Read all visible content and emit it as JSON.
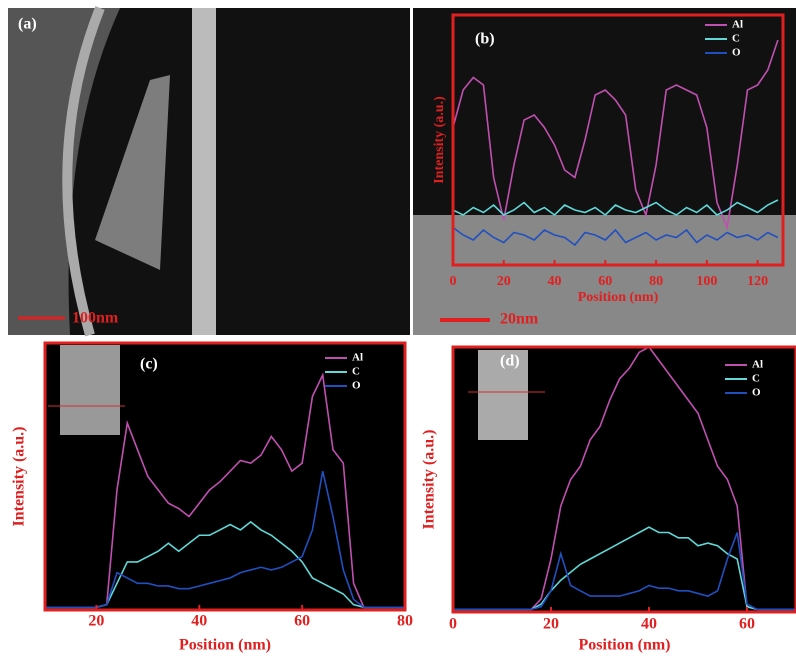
{
  "panel_a": {
    "label": "(a)",
    "scale_bar": "100nm"
  },
  "chart_data": [
    {
      "type": "line",
      "panel_label": "(b)",
      "scale_bar": "20nm",
      "xlabel": "Position (nm)",
      "ylabel": "Intensity (a.u.)",
      "xlim": [
        0,
        130
      ],
      "xticks": [
        0,
        20,
        40,
        60,
        80,
        100,
        120
      ],
      "ylim": [
        0,
        100
      ],
      "x": [
        0,
        4,
        8,
        12,
        16,
        20,
        24,
        28,
        32,
        36,
        40,
        44,
        48,
        52,
        56,
        60,
        64,
        68,
        72,
        76,
        80,
        84,
        88,
        92,
        96,
        100,
        104,
        108,
        112,
        116,
        120,
        124,
        128
      ],
      "series": [
        {
          "name": "Al",
          "color": "#c050b0",
          "values": [
            55,
            70,
            75,
            72,
            35,
            18,
            40,
            58,
            60,
            55,
            48,
            38,
            35,
            50,
            68,
            70,
            66,
            60,
            30,
            20,
            40,
            70,
            72,
            70,
            68,
            55,
            25,
            15,
            40,
            70,
            72,
            78,
            90
          ]
        },
        {
          "name": "C",
          "color": "#60d8d8",
          "values": [
            22,
            20,
            23,
            21,
            24,
            20,
            22,
            25,
            21,
            23,
            20,
            24,
            22,
            21,
            23,
            20,
            24,
            22,
            21,
            23,
            25,
            22,
            20,
            23,
            21,
            24,
            20,
            22,
            25,
            23,
            21,
            24,
            26
          ]
        },
        {
          "name": "O",
          "color": "#2050c0",
          "values": [
            15,
            12,
            10,
            14,
            11,
            9,
            13,
            12,
            10,
            14,
            12,
            11,
            8,
            13,
            12,
            10,
            14,
            9,
            11,
            13,
            10,
            12,
            11,
            14,
            9,
            12,
            10,
            13,
            11,
            12,
            10,
            13,
            11
          ]
        }
      ]
    },
    {
      "type": "line",
      "panel_label": "(c)",
      "xlabel": "Position (nm)",
      "ylabel": "Intensity (a.u.)",
      "xlim": [
        10,
        80
      ],
      "xticks": [
        20,
        40,
        60,
        80
      ],
      "ylim": [
        0,
        100
      ],
      "x": [
        10,
        12,
        14,
        16,
        18,
        20,
        22,
        24,
        26,
        28,
        30,
        32,
        34,
        36,
        38,
        40,
        42,
        44,
        46,
        48,
        50,
        52,
        54,
        56,
        58,
        60,
        62,
        64,
        66,
        68,
        70,
        72,
        74,
        76,
        78,
        80
      ],
      "series": [
        {
          "name": "Al",
          "color": "#c050b0",
          "values": [
            1,
            1,
            1,
            1,
            1,
            1,
            2,
            45,
            70,
            60,
            50,
            45,
            40,
            38,
            35,
            40,
            45,
            48,
            52,
            56,
            55,
            58,
            65,
            60,
            52,
            55,
            80,
            88,
            60,
            55,
            10,
            1,
            1,
            1,
            1,
            1
          ]
        },
        {
          "name": "C",
          "color": "#60d8d8",
          "values": [
            1,
            1,
            1,
            1,
            1,
            1,
            2,
            10,
            18,
            18,
            20,
            22,
            25,
            22,
            25,
            28,
            28,
            30,
            32,
            30,
            33,
            30,
            28,
            25,
            22,
            18,
            12,
            10,
            8,
            6,
            2,
            1,
            1,
            1,
            1,
            1
          ]
        },
        {
          "name": "O",
          "color": "#2050c0",
          "values": [
            1,
            1,
            1,
            1,
            1,
            1,
            2,
            14,
            12,
            10,
            10,
            9,
            9,
            8,
            8,
            9,
            10,
            11,
            12,
            14,
            15,
            16,
            15,
            16,
            18,
            20,
            30,
            52,
            35,
            15,
            4,
            1,
            1,
            1,
            1,
            1
          ]
        }
      ]
    },
    {
      "type": "line",
      "panel_label": "(d)",
      "xlabel": "Position (nm)",
      "ylabel": "Intensity (a.u.)",
      "xlim": [
        0,
        70
      ],
      "xticks": [
        0,
        20,
        40,
        60
      ],
      "ylim": [
        0,
        100
      ],
      "x": [
        0,
        2,
        4,
        6,
        8,
        10,
        12,
        14,
        16,
        18,
        20,
        22,
        24,
        26,
        28,
        30,
        32,
        34,
        36,
        38,
        40,
        42,
        44,
        46,
        48,
        50,
        52,
        54,
        56,
        58,
        60,
        62,
        64,
        66,
        68,
        70
      ],
      "series": [
        {
          "name": "Al",
          "color": "#c050b0",
          "values": [
            1,
            1,
            1,
            1,
            1,
            1,
            1,
            1,
            1,
            5,
            20,
            40,
            50,
            55,
            65,
            70,
            80,
            88,
            92,
            98,
            100,
            95,
            90,
            85,
            80,
            75,
            65,
            55,
            50,
            40,
            2,
            1,
            1,
            1,
            1,
            1
          ]
        },
        {
          "name": "C",
          "color": "#60d8d8",
          "values": [
            1,
            1,
            1,
            1,
            1,
            1,
            1,
            1,
            1,
            3,
            8,
            12,
            15,
            18,
            20,
            22,
            24,
            26,
            28,
            30,
            32,
            30,
            30,
            28,
            28,
            25,
            26,
            25,
            22,
            20,
            2,
            1,
            1,
            1,
            1,
            1
          ]
        },
        {
          "name": "O",
          "color": "#2050c0",
          "values": [
            1,
            1,
            1,
            1,
            1,
            1,
            1,
            1,
            1,
            2,
            8,
            22,
            10,
            8,
            6,
            6,
            6,
            6,
            7,
            8,
            10,
            9,
            9,
            8,
            8,
            7,
            6,
            8,
            20,
            30,
            3,
            1,
            1,
            1,
            1,
            1
          ]
        }
      ]
    }
  ]
}
